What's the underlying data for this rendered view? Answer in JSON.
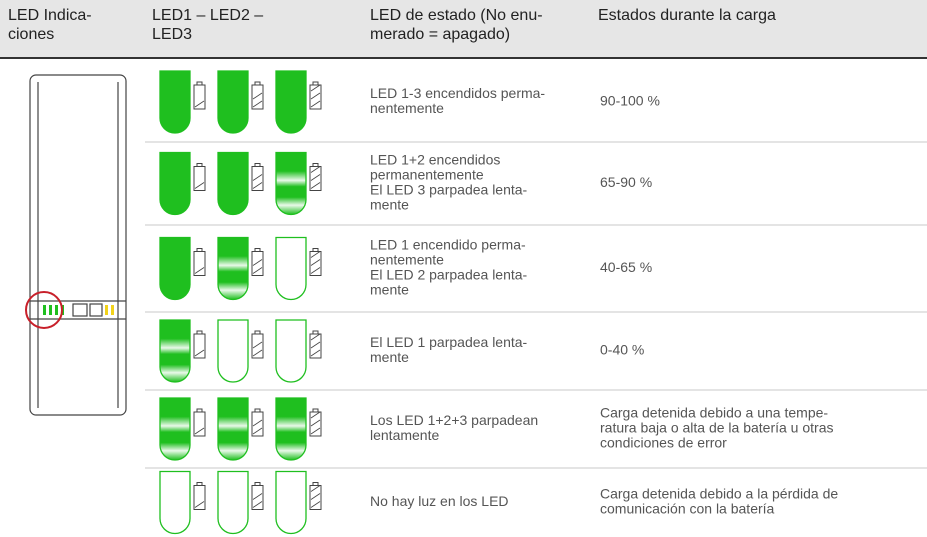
{
  "header": {
    "col1": [
      "LED Indica-",
      "ciones"
    ],
    "col2": [
      "LED1 – LED2 –",
      "LED3"
    ],
    "col3": [
      "LED de estado (No enu-",
      "merado = apagado)"
    ],
    "col4": [
      "Estados durante la carga"
    ]
  },
  "table": {
    "rows": [
      {
        "status": [
          "LED 1-3 encendidos perma-",
          "nentemente"
        ],
        "charge": [
          "90-100 %"
        ]
      },
      {
        "status": [
          "LED 1+2 encendidos",
          "permanentemente",
          "El LED 3 parpadea lenta-",
          "mente"
        ],
        "charge": [
          "65-90 %"
        ]
      },
      {
        "status": [
          "LED 1 encendido perma-",
          "nentemente",
          "El LED 2 parpadea lenta-",
          "mente"
        ],
        "charge": [
          "40-65 %"
        ]
      },
      {
        "status": [
          "El LED 1 parpadea lenta-",
          "mente"
        ],
        "charge": [
          "0-40 %"
        ]
      },
      {
        "status": [
          "Los LED 1+2+3 parpadean",
          "lentamente"
        ],
        "charge": [
          "Carga detenida debido a una tempe-",
          "ratura baja o alta de la batería u otras",
          "condiciones de error"
        ]
      },
      {
        "status": [
          "No hay luz en los LED"
        ],
        "charge": [
          "Carga detenida debido a la pérdida de",
          "comunicación con la batería"
        ]
      }
    ]
  }
}
